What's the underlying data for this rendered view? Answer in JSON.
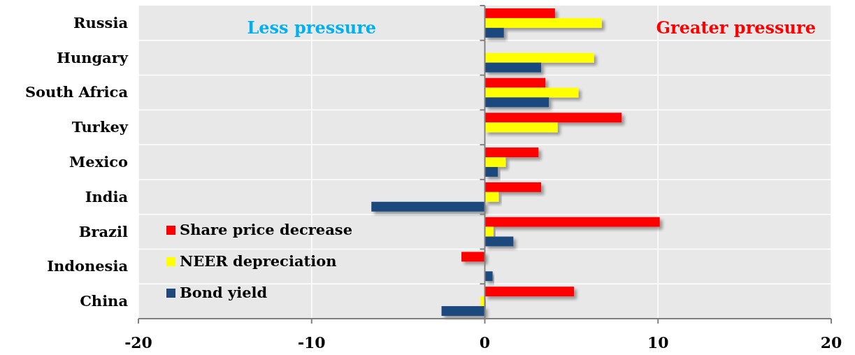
{
  "chart_data": {
    "type": "bar",
    "orientation": "horizontal",
    "categories": [
      "Russia",
      "Hungary",
      "South Africa",
      "Turkey",
      "Mexico",
      "India",
      "Brazil",
      "Indonesia",
      "China"
    ],
    "series": [
      {
        "name": "Share price decrease",
        "color": "#ff0000",
        "values": [
          4.05,
          null,
          3.5,
          7.9,
          3.1,
          3.25,
          10.1,
          -1.35,
          5.15
        ]
      },
      {
        "name": "NEER depreciation",
        "color": "#ffff00",
        "values": [
          6.75,
          6.3,
          5.4,
          4.2,
          1.2,
          0.8,
          0.5,
          null,
          -0.25
        ]
      },
      {
        "name": "Bond yield",
        "color": "#1f497d",
        "values": [
          1.1,
          3.25,
          3.7,
          null,
          0.75,
          -6.55,
          1.65,
          0.45,
          -2.5
        ]
      }
    ],
    "xlim": [
      -20,
      20
    ],
    "xticks": [
      -20,
      -10,
      0,
      10,
      20
    ],
    "grid": true,
    "legend": "bottom left",
    "annotations": [
      "Less pressure",
      "Greater pressure"
    ]
  }
}
